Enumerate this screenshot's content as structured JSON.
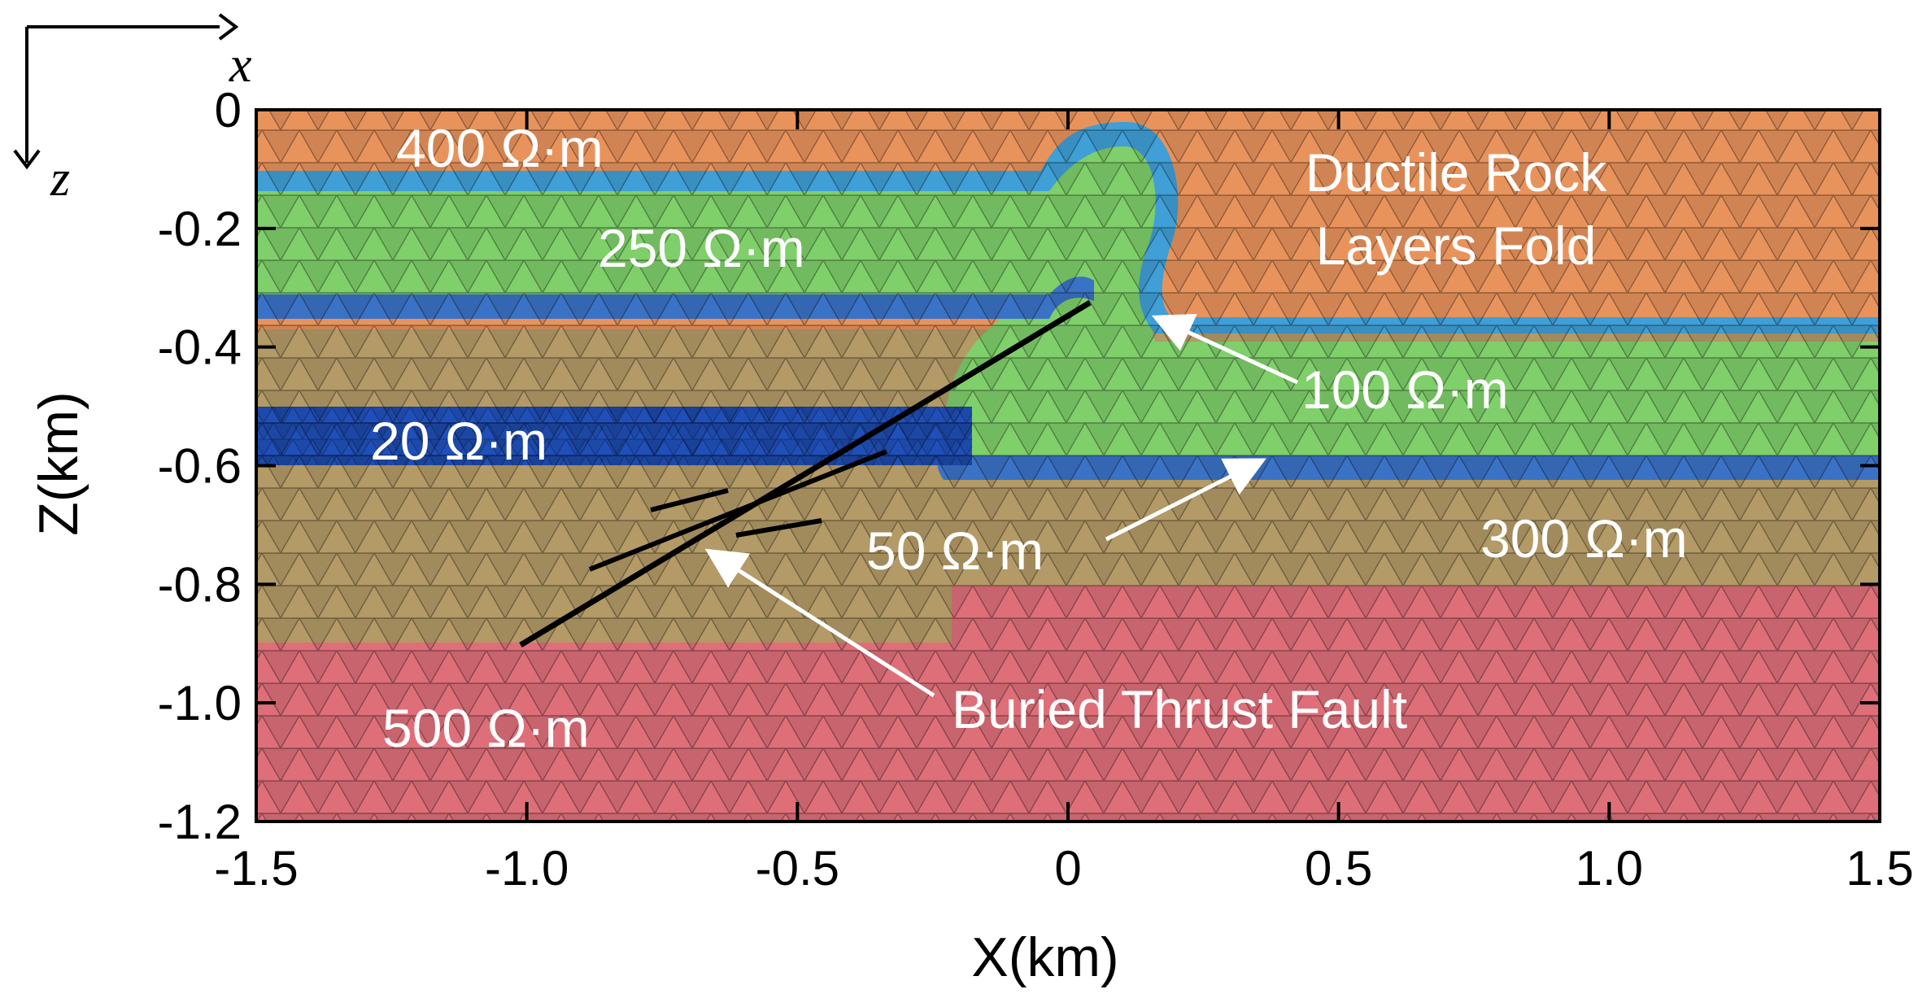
{
  "figure": {
    "axes": {
      "x": {
        "title": "X(km)",
        "range": [
          -1.5,
          1.5
        ],
        "ticks": [
          -1.5,
          -1.0,
          -0.5,
          0,
          0.5,
          1.0,
          1.5
        ]
      },
      "z": {
        "title": "Z(km)",
        "range": [
          -1.2,
          0
        ],
        "ticks": [
          0,
          -0.2,
          -0.4,
          -0.6,
          -0.8,
          -1.0,
          -1.2
        ]
      },
      "tick_labels": {
        "x": [
          "-1.5",
          "-1.0",
          "-0.5",
          "0",
          "0.5",
          "1.0",
          "1.5"
        ],
        "z": [
          "0",
          "-0.2",
          "-0.4",
          "-0.6",
          "-0.8",
          "-1.0",
          "-1.2"
        ]
      }
    },
    "coordinate_indicator": {
      "x_label": "x",
      "z_label": "z"
    },
    "layers": [
      {
        "label": "400 Ω·m",
        "color": "#e9935c"
      },
      {
        "label": "250 Ω·m",
        "color": "#7fcf6a"
      },
      {
        "label": "100 Ω·m",
        "color": "#3f9fd6"
      },
      {
        "label": "20 Ω·m",
        "color": "#1f4fb8"
      },
      {
        "label": "50 Ω·m",
        "color": "#3a72c6"
      },
      {
        "label": "300 Ω·m",
        "color": "#b39a66"
      },
      {
        "label": "500 Ω·m",
        "color": "#de6f79"
      }
    ],
    "annotations": {
      "fold_line1": "Ductile Rock",
      "fold_line2": "Layers Fold",
      "fault": "Buried Thrust Fault"
    },
    "colors": {
      "fault_line": "#000000",
      "label_text": "#ffffff",
      "arrow": "#ffffff"
    }
  }
}
